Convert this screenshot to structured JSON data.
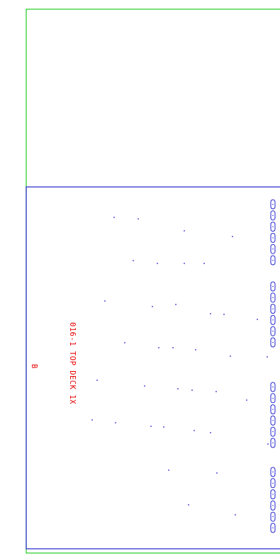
{
  "drawing": {
    "part_label": "016-1 TOP DECK 1X",
    "revision": "B",
    "colors": {
      "outer_border": "#22cc22",
      "panel_border": "#2222cc",
      "holes": "#2222cc",
      "slots": "#2222cc",
      "label_text": "#e60000"
    },
    "slot_groups": 4,
    "slots_per_group": 6
  }
}
